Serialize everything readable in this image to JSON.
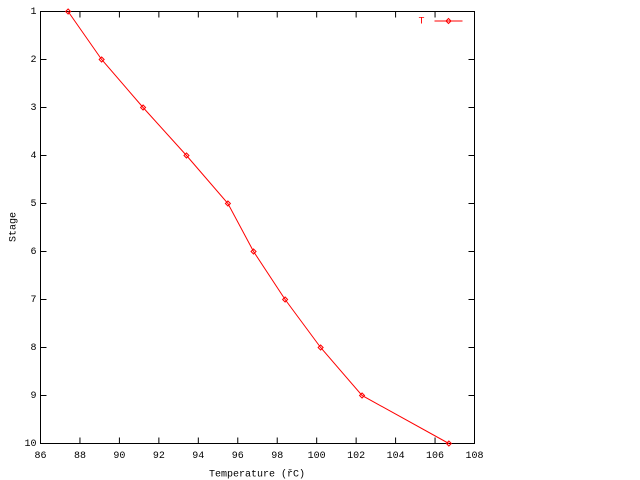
{
  "chart_data": {
    "type": "line",
    "x_label": "Temperature (řC)",
    "y_label": "Stage",
    "x": [
      87.4,
      89.1,
      91.2,
      93.4,
      95.5,
      96.8,
      98.4,
      100.2,
      102.3,
      106.7
    ],
    "series": [
      {
        "name": "T",
        "color": "#ff0000",
        "values": [
          1,
          2,
          3,
          4,
          5,
          6,
          7,
          8,
          9,
          10
        ]
      }
    ],
    "xlim": [
      86,
      108
    ],
    "xticks": [
      86,
      88,
      90,
      92,
      94,
      96,
      98,
      100,
      102,
      104,
      106,
      108
    ],
    "ylim": [
      10,
      1
    ],
    "yticks": [
      1,
      2,
      3,
      4,
      5,
      6,
      7,
      8,
      9,
      10
    ],
    "grid": false,
    "legend": "top-right"
  }
}
